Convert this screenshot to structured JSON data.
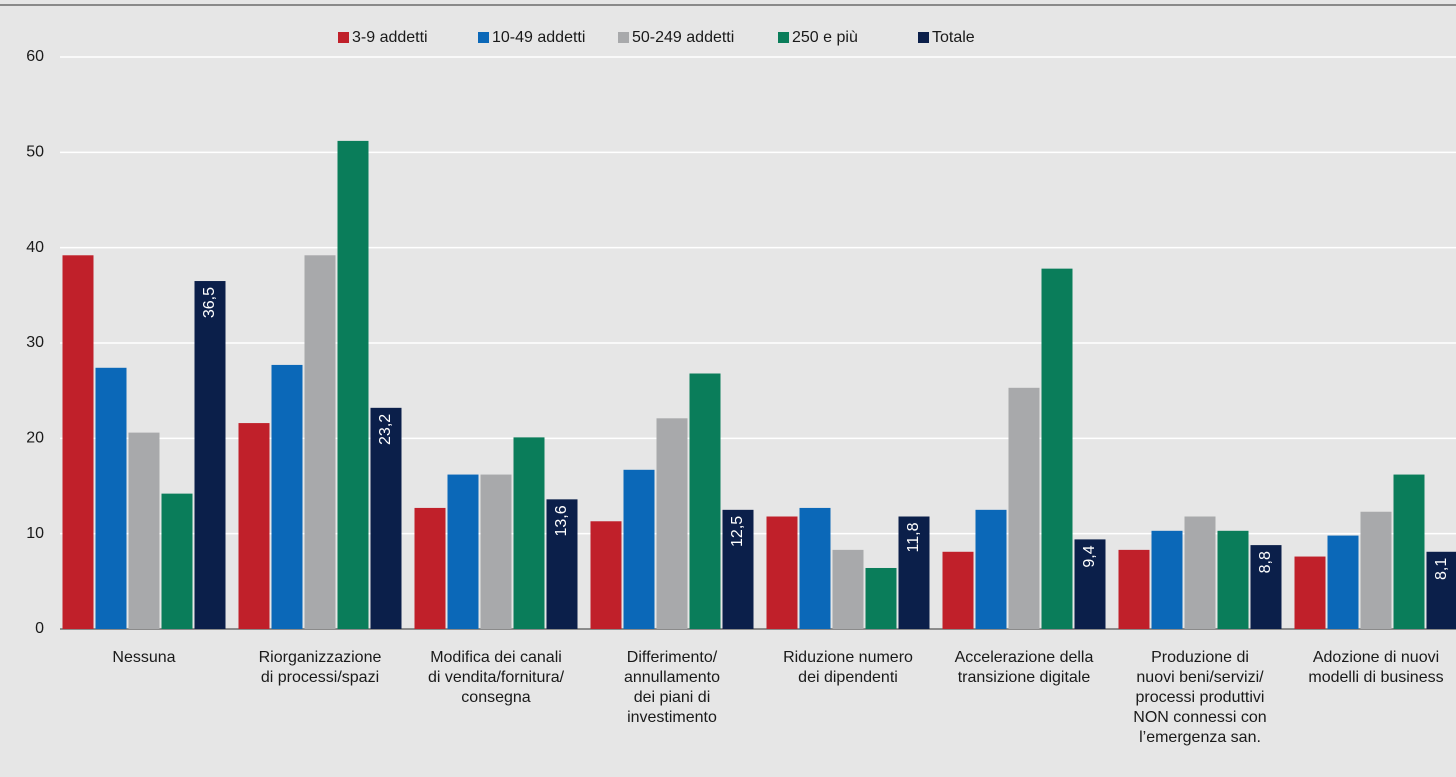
{
  "chart_data": {
    "type": "bar",
    "categories": [
      "Nessuna",
      "Riorganizzazione\ndi processi/spazi",
      "Modifica dei canali\ndi vendita/fornitura/\nconsegna",
      "Differimento/\nannullamento\ndei piani di\ninvestimento",
      "Riduzione numero\ndei dipendenti",
      "Accelerazione della\ntransizione digitale",
      "Produzione di\nnuovi beni/servizi/\nprocessi produttivi\nNON connessi con\nl’emergenza san.",
      "Adozione di nuovi\nmodelli di business"
    ],
    "series": [
      {
        "name": "3-9 addetti",
        "color": "#c0202a",
        "values": [
          39.2,
          21.6,
          12.7,
          11.3,
          11.8,
          8.1,
          8.3,
          7.6
        ]
      },
      {
        "name": "10-49 addetti",
        "color": "#0b68b8",
        "values": [
          27.4,
          27.7,
          16.2,
          16.7,
          12.7,
          12.5,
          10.3,
          9.8
        ]
      },
      {
        "name": "50-249 addetti",
        "color": "#a8a9ab",
        "values": [
          20.6,
          39.2,
          16.2,
          22.1,
          8.3,
          25.3,
          11.8,
          12.3
        ]
      },
      {
        "name": "250 e più",
        "color": "#0a7d5a",
        "values": [
          14.2,
          51.2,
          20.1,
          26.8,
          6.4,
          37.8,
          10.3,
          16.2
        ]
      },
      {
        "name": "Totale",
        "color": "#0b1f4a",
        "values": [
          36.5,
          23.2,
          13.6,
          12.5,
          11.8,
          9.4,
          8.8,
          8.1
        ],
        "value_labels": [
          "36,5",
          "23,2",
          "13,6",
          "12,5",
          "11,8",
          "9,4",
          "8,8",
          "8,1"
        ]
      }
    ],
    "ylim": [
      0,
      60
    ],
    "yticks": [
      0,
      10,
      20,
      30,
      40,
      50,
      60
    ],
    "grid": true,
    "legend": "top"
  }
}
